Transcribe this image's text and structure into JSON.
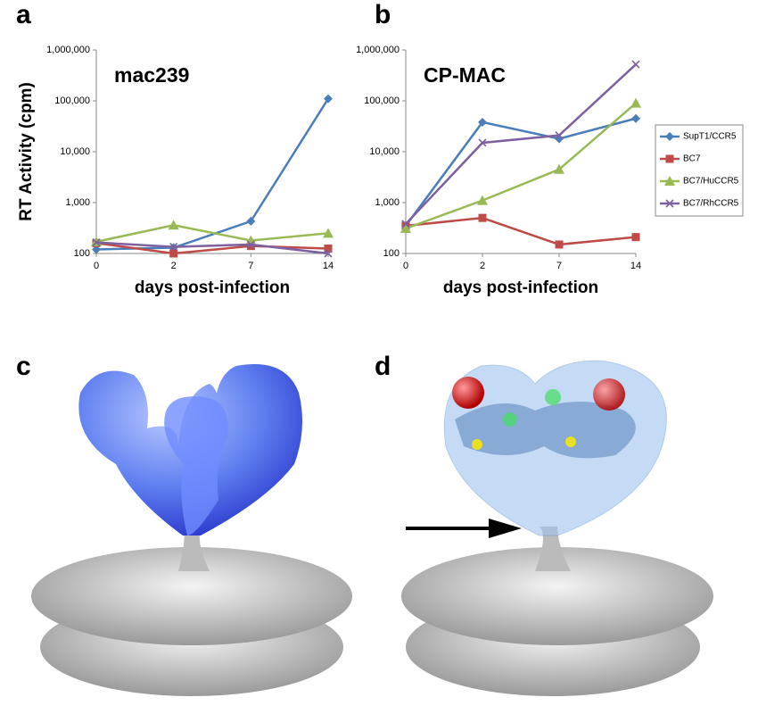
{
  "panel_labels": [
    "a",
    "b",
    "c",
    "d"
  ],
  "chart_data": [
    {
      "type": "line",
      "title": "mac239",
      "y_label": "RT Activity (cpm)",
      "x_label": "days post-infection",
      "categories": [
        "0",
        "2",
        "7",
        "14"
      ],
      "log_scale": true,
      "grid": false,
      "ylim": [
        100,
        1000000
      ],
      "yticks": [
        100,
        {
          "value": 1000,
          "label": "1,000"
        },
        {
          "value": 10000,
          "label": "10,000"
        },
        {
          "value": 100000,
          "label": "100,000"
        },
        {
          "value": 1000000,
          "label": "1,000,000"
        }
      ],
      "series": [
        {
          "color": "#4a7ebb",
          "marker": "diamond",
          "values": [
            120,
            130,
            430,
            110000
          ]
        },
        {
          "color": "#be4b48",
          "marker": "square",
          "values": [
            160,
            100,
            140,
            125
          ]
        },
        {
          "color": "#98b954",
          "marker": "triangle",
          "values": [
            170,
            360,
            180,
            250
          ]
        },
        {
          "color": "#7d60a0",
          "marker": "x",
          "values": [
            165,
            135,
            150,
            100
          ]
        }
      ]
    },
    {
      "type": "line",
      "title": "CP-MAC",
      "x_label": "days post-infection",
      "categories": [
        "0",
        "2",
        "7",
        "14"
      ],
      "log_scale": true,
      "grid": false,
      "legend": "right",
      "ylim": [
        100,
        1000000
      ],
      "yticks": [
        100,
        {
          "value": 1000,
          "label": "1,000"
        },
        {
          "value": 10000,
          "label": "10,000"
        },
        {
          "value": 100000,
          "label": "100,000"
        },
        {
          "value": 1000000,
          "label": "1,000,000"
        }
      ],
      "series": [
        {
          "name": "SupT1/CCR5",
          "color": "#4a7ebb",
          "marker": "diamond",
          "values": [
            350,
            38000,
            18000,
            45000
          ]
        },
        {
          "name": "BC7",
          "color": "#be4b48",
          "marker": "square",
          "values": [
            350,
            500,
            150,
            210
          ]
        },
        {
          "name": "BC7/HuCCR5",
          "color": "#98b954",
          "marker": "triangle",
          "values": [
            310,
            1100,
            4500,
            90000
          ]
        },
        {
          "name": "BC7/RhCCR5",
          "color": "#7d60a0",
          "marker": "x",
          "values": [
            380,
            15000,
            21000,
            520000
          ]
        }
      ]
    }
  ]
}
